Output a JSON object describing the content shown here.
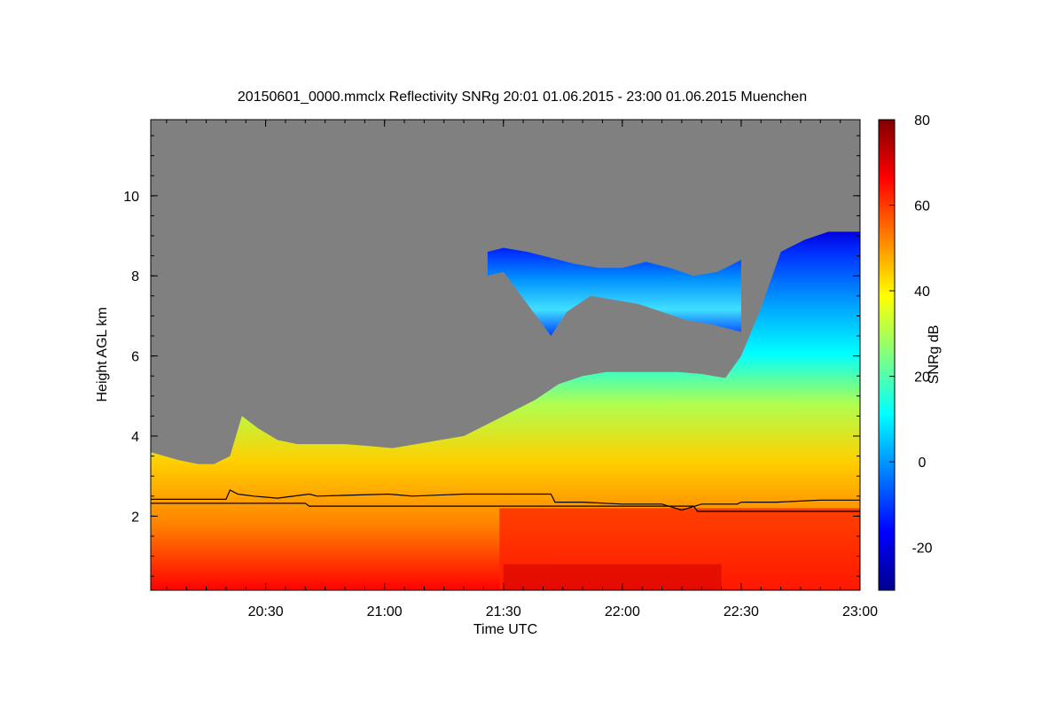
{
  "chart_data": {
    "type": "heatmap",
    "title": "20150601_0000.mmclx Reflectivity SNRg   20:01 01.06.2015 - 23:00 01.06.2015 Muenchen",
    "xlabel": "Time UTC",
    "ylabel": "Height AGL km",
    "xlim_minutes": [
      1201,
      1380
    ],
    "ylim_km": [
      0.15,
      11.9
    ],
    "x_ticks": [
      {
        "minute": 1230,
        "label": "20:30"
      },
      {
        "minute": 1260,
        "label": "21:00"
      },
      {
        "minute": 1290,
        "label": "21:30"
      },
      {
        "minute": 1320,
        "label": "22:00"
      },
      {
        "minute": 1350,
        "label": "22:30"
      },
      {
        "minute": 1380,
        "label": "23:00"
      }
    ],
    "y_ticks": [
      {
        "value": 2,
        "label": "2"
      },
      {
        "value": 4,
        "label": "4"
      },
      {
        "value": 6,
        "label": "6"
      },
      {
        "value": 8,
        "label": "8"
      },
      {
        "value": 10,
        "label": "10"
      }
    ],
    "colorbar": {
      "label": "SNRg dB",
      "range": [
        -30,
        80
      ],
      "ticks": [
        {
          "value": -20,
          "label": "-20"
        },
        {
          "value": 0,
          "label": "0"
        },
        {
          "value": 20,
          "label": "20"
        },
        {
          "value": 40,
          "label": "40"
        },
        {
          "value": 60,
          "label": "60"
        },
        {
          "value": 80,
          "label": "80"
        }
      ],
      "colormap": [
        "#00008f",
        "#0000ff",
        "#0080ff",
        "#00ffff",
        "#80ff80",
        "#ffff00",
        "#ff8000",
        "#ff0000",
        "#800000"
      ]
    },
    "background_color": "#808080",
    "cloud_top_km": [
      [
        1201,
        3.6
      ],
      [
        1208,
        3.4
      ],
      [
        1213,
        3.3
      ],
      [
        1217,
        3.3
      ],
      [
        1221,
        3.5
      ],
      [
        1224,
        4.5
      ],
      [
        1228,
        4.2
      ],
      [
        1233,
        3.9
      ],
      [
        1238,
        3.8
      ],
      [
        1244,
        3.8
      ],
      [
        1250,
        3.8
      ],
      [
        1256,
        3.75
      ],
      [
        1262,
        3.7
      ],
      [
        1268,
        3.8
      ],
      [
        1274,
        3.9
      ],
      [
        1280,
        4.0
      ],
      [
        1286,
        4.3
      ],
      [
        1292,
        4.6
      ],
      [
        1298,
        4.9
      ],
      [
        1304,
        5.3
      ],
      [
        1310,
        5.5
      ],
      [
        1316,
        5.6
      ],
      [
        1322,
        5.6
      ],
      [
        1328,
        5.6
      ],
      [
        1334,
        5.6
      ],
      [
        1340,
        5.55
      ],
      [
        1346,
        5.45
      ],
      [
        1350,
        6.0
      ],
      [
        1355,
        7.2
      ],
      [
        1360,
        8.6
      ],
      [
        1366,
        8.9
      ],
      [
        1372,
        9.1
      ],
      [
        1380,
        9.1
      ]
    ],
    "upper_layer": {
      "time_range": [
        1286,
        1350
      ],
      "top_km": [
        [
          1286,
          8.6
        ],
        [
          1290,
          8.7
        ],
        [
          1296,
          8.6
        ],
        [
          1302,
          8.45
        ],
        [
          1308,
          8.3
        ],
        [
          1314,
          8.2
        ],
        [
          1320,
          8.2
        ],
        [
          1326,
          8.35
        ],
        [
          1332,
          8.2
        ],
        [
          1338,
          8.0
        ],
        [
          1344,
          8.1
        ],
        [
          1350,
          8.4
        ]
      ],
      "base_km": [
        [
          1286,
          8.0
        ],
        [
          1290,
          8.1
        ],
        [
          1296,
          7.3
        ],
        [
          1302,
          6.5
        ],
        [
          1306,
          7.1
        ],
        [
          1312,
          7.5
        ],
        [
          1318,
          7.4
        ],
        [
          1324,
          7.3
        ],
        [
          1330,
          7.1
        ],
        [
          1336,
          6.9
        ],
        [
          1342,
          6.8
        ],
        [
          1350,
          6.6
        ]
      ]
    },
    "series": [
      {
        "name": "boundary layer line 1",
        "color": "#000000",
        "points": [
          [
            1201,
            2.42
          ],
          [
            1220,
            2.42
          ],
          [
            1221,
            2.65
          ],
          [
            1223,
            2.55
          ],
          [
            1227,
            2.5
          ],
          [
            1233,
            2.45
          ],
          [
            1241,
            2.55
          ],
          [
            1243,
            2.5
          ],
          [
            1261,
            2.55
          ],
          [
            1267,
            2.5
          ],
          [
            1280,
            2.55
          ],
          [
            1302,
            2.55
          ],
          [
            1303,
            2.35
          ],
          [
            1310,
            2.35
          ],
          [
            1320,
            2.3
          ],
          [
            1330,
            2.3
          ],
          [
            1335,
            2.15
          ],
          [
            1340,
            2.3
          ],
          [
            1349,
            2.3
          ],
          [
            1350,
            2.35
          ],
          [
            1359,
            2.35
          ],
          [
            1370,
            2.4
          ],
          [
            1380,
            2.4
          ]
        ]
      },
      {
        "name": "boundary layer line 2",
        "color": "#000000",
        "points": [
          [
            1201,
            2.32
          ],
          [
            1240,
            2.32
          ],
          [
            1241,
            2.25
          ],
          [
            1290,
            2.25
          ],
          [
            1338,
            2.25
          ],
          [
            1339,
            2.12
          ],
          [
            1380,
            2.12
          ]
        ]
      }
    ]
  }
}
